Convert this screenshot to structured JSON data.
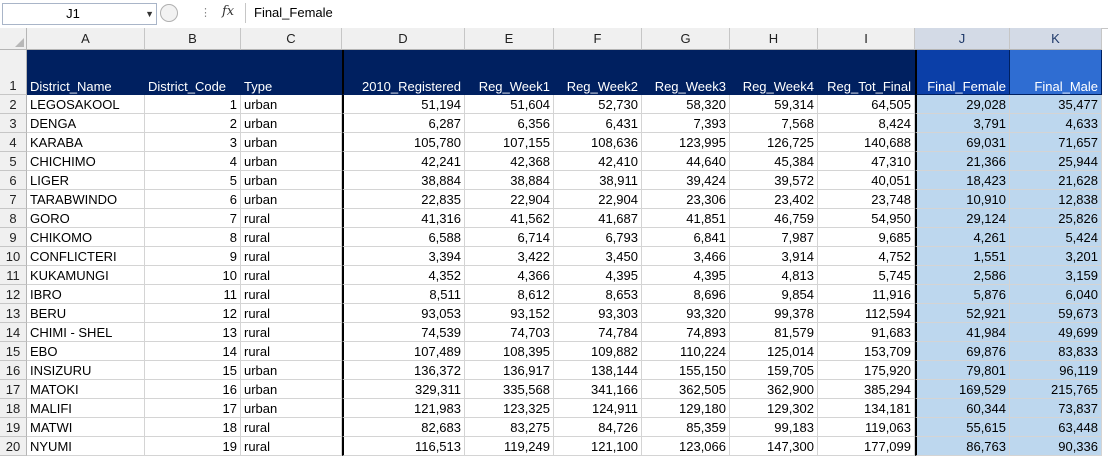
{
  "formula_bar": {
    "name_box": "J1",
    "fx_label": "fx",
    "formula": "Final_Female"
  },
  "columns": [
    {
      "letter": "A",
      "header": "District_Name",
      "align": "txt"
    },
    {
      "letter": "B",
      "header": "District_Code",
      "align": "num"
    },
    {
      "letter": "C",
      "header": "Type",
      "align": "txt"
    },
    {
      "letter": "D",
      "header": "2010_Registered",
      "align": "num"
    },
    {
      "letter": "E",
      "header": "Reg_Week1",
      "align": "num"
    },
    {
      "letter": "F",
      "header": "Reg_Week2",
      "align": "num"
    },
    {
      "letter": "G",
      "header": "Reg_Week3",
      "align": "num"
    },
    {
      "letter": "H",
      "header": "Reg_Week4",
      "align": "num"
    },
    {
      "letter": "I",
      "header": "Reg_Tot_Final",
      "align": "num"
    },
    {
      "letter": "J",
      "header": "Final_Female",
      "align": "num"
    },
    {
      "letter": "K",
      "header": "Final_Male",
      "align": "num"
    }
  ],
  "rows": [
    [
      "LEGOSAKOOL",
      "1",
      "urban",
      "51,194",
      "51,604",
      "52,730",
      "58,320",
      "59,314",
      "64,505",
      "29,028",
      "35,477"
    ],
    [
      "DENGA",
      "2",
      "urban",
      "6,287",
      "6,356",
      "6,431",
      "7,393",
      "7,568",
      "8,424",
      "3,791",
      "4,633"
    ],
    [
      "KARABA",
      "3",
      "urban",
      "105,780",
      "107,155",
      "108,636",
      "123,995",
      "126,725",
      "140,688",
      "69,031",
      "71,657"
    ],
    [
      "CHICHIMO",
      "4",
      "urban",
      "42,241",
      "42,368",
      "42,410",
      "44,640",
      "45,384",
      "47,310",
      "21,366",
      "25,944"
    ],
    [
      "LIGER",
      "5",
      "urban",
      "38,884",
      "38,884",
      "38,911",
      "39,424",
      "39,572",
      "40,051",
      "18,423",
      "21,628"
    ],
    [
      "TARABWINDO",
      "6",
      "urban",
      "22,835",
      "22,904",
      "22,904",
      "23,306",
      "23,402",
      "23,748",
      "10,910",
      "12,838"
    ],
    [
      "GORO",
      "7",
      "rural",
      "41,316",
      "41,562",
      "41,687",
      "41,851",
      "46,759",
      "54,950",
      "29,124",
      "25,826"
    ],
    [
      "CHIKOMO",
      "8",
      "rural",
      "6,588",
      "6,714",
      "6,793",
      "6,841",
      "7,987",
      "9,685",
      "4,261",
      "5,424"
    ],
    [
      "CONFLICTERI",
      "9",
      "rural",
      "3,394",
      "3,422",
      "3,450",
      "3,466",
      "3,914",
      "4,752",
      "1,551",
      "3,201"
    ],
    [
      "KUKAMUNGI",
      "10",
      "rural",
      "4,352",
      "4,366",
      "4,395",
      "4,395",
      "4,813",
      "5,745",
      "2,586",
      "3,159"
    ],
    [
      "IBRO",
      "11",
      "rural",
      "8,511",
      "8,612",
      "8,653",
      "8,696",
      "9,854",
      "11,916",
      "5,876",
      "6,040"
    ],
    [
      "BERU",
      "12",
      "rural",
      "93,053",
      "93,152",
      "93,303",
      "93,320",
      "99,378",
      "112,594",
      "52,921",
      "59,673"
    ],
    [
      "CHIMI - SHEL",
      "13",
      "rural",
      "74,539",
      "74,703",
      "74,784",
      "74,893",
      "81,579",
      "91,683",
      "41,984",
      "49,699"
    ],
    [
      "EBO",
      "14",
      "rural",
      "107,489",
      "108,395",
      "109,882",
      "110,224",
      "125,014",
      "153,709",
      "69,876",
      "83,833"
    ],
    [
      "INSIZURU",
      "15",
      "urban",
      "136,372",
      "136,917",
      "138,144",
      "155,150",
      "159,705",
      "175,920",
      "79,801",
      "96,119"
    ],
    [
      "MATOKI",
      "16",
      "urban",
      "329,311",
      "335,568",
      "341,166",
      "362,505",
      "362,900",
      "385,294",
      "169,529",
      "215,765"
    ],
    [
      "MALIFI",
      "17",
      "urban",
      "121,983",
      "123,325",
      "124,911",
      "129,180",
      "129,302",
      "134,181",
      "60,344",
      "73,837"
    ],
    [
      "MATWI",
      "18",
      "rural",
      "82,683",
      "83,275",
      "84,726",
      "85,359",
      "99,183",
      "119,063",
      "55,615",
      "63,448"
    ],
    [
      "NYUMI",
      "19",
      "rural",
      "116,513",
      "119,249",
      "121,100",
      "123,066",
      "147,300",
      "177,099",
      "86,763",
      "90,336"
    ]
  ],
  "colors": {
    "header_fill": "#002060",
    "selected_header_fill": "#0b3fa8",
    "selection_fill": "#bdd7ee",
    "column_header_bg": "#f0f0f0"
  }
}
